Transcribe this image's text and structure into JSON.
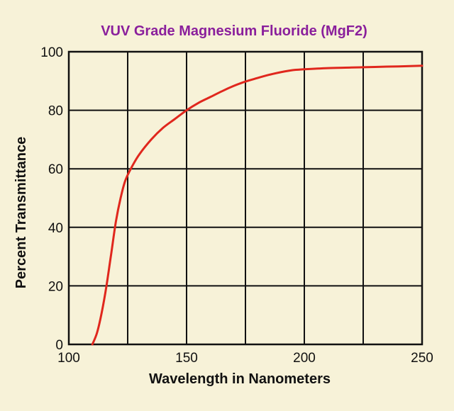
{
  "chart_data": {
    "type": "line",
    "title": "VUV Grade Magnesium Fluoride  (MgF2)",
    "xlabel": "Wavelength in Nanometers",
    "ylabel": "Percent Transmittance",
    "xlim": [
      100,
      250
    ],
    "ylim": [
      0,
      100
    ],
    "x_ticks": [
      "100",
      "150",
      "200",
      "250"
    ],
    "y_ticks": [
      "0",
      "20",
      "40",
      "60",
      "80",
      "100"
    ],
    "grid": true,
    "series": [
      {
        "x": [
          110,
          112,
          114,
          116,
          118,
          120,
          122,
          124,
          127,
          130,
          135,
          140,
          145,
          150,
          155,
          160,
          165,
          170,
          175,
          180,
          185,
          190,
          195,
          200,
          210,
          220,
          230,
          240,
          250
        ],
        "y": [
          0,
          4,
          11,
          20,
          31,
          42,
          50,
          56,
          61,
          65,
          70,
          74,
          77,
          80,
          82.5,
          84.5,
          86.5,
          88.3,
          89.8,
          91,
          92.1,
          93,
          93.7,
          94,
          94.4,
          94.6,
          94.8,
          95,
          95.2
        ]
      }
    ],
    "colors": {
      "background": "#f7f2d8",
      "title": "#8a1f9c",
      "grid": "#111111",
      "line": "#e0271d"
    }
  }
}
